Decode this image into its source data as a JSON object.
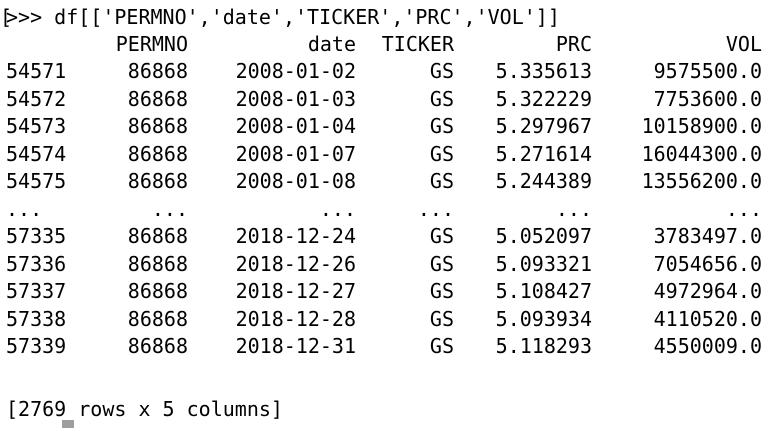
{
  "terminal": {
    "prompt_bracket": "[",
    "command": ">>> df[['PERMNO','date','TICKER','PRC','VOL']]",
    "headers": [
      "",
      "PERMNO",
      "date",
      "TICKER",
      "PRC",
      "VOL"
    ],
    "rows": [
      [
        "54571",
        "86868",
        "2008-01-02",
        "GS",
        "5.335613",
        "9575500.0"
      ],
      [
        "54572",
        "86868",
        "2008-01-03",
        "GS",
        "5.322229",
        "7753600.0"
      ],
      [
        "54573",
        "86868",
        "2008-01-04",
        "GS",
        "5.297967",
        "10158900.0"
      ],
      [
        "54574",
        "86868",
        "2008-01-07",
        "GS",
        "5.271614",
        "16044300.0"
      ],
      [
        "54575",
        "86868",
        "2008-01-08",
        "GS",
        "5.244389",
        "13556200.0"
      ],
      [
        "...",
        "...",
        "...",
        "...",
        "...",
        "..."
      ],
      [
        "57335",
        "86868",
        "2018-12-24",
        "GS",
        "5.052097",
        "3783497.0"
      ],
      [
        "57336",
        "86868",
        "2018-12-26",
        "GS",
        "5.093321",
        "7054656.0"
      ],
      [
        "57337",
        "86868",
        "2018-12-27",
        "GS",
        "5.108427",
        "4972964.0"
      ],
      [
        "57338",
        "86868",
        "2018-12-28",
        "GS",
        "5.093934",
        "4110520.0"
      ],
      [
        "57339",
        "86868",
        "2018-12-31",
        "GS",
        "5.118293",
        "4550009.0"
      ]
    ],
    "summary": "[2769 rows x 5 columns]"
  }
}
